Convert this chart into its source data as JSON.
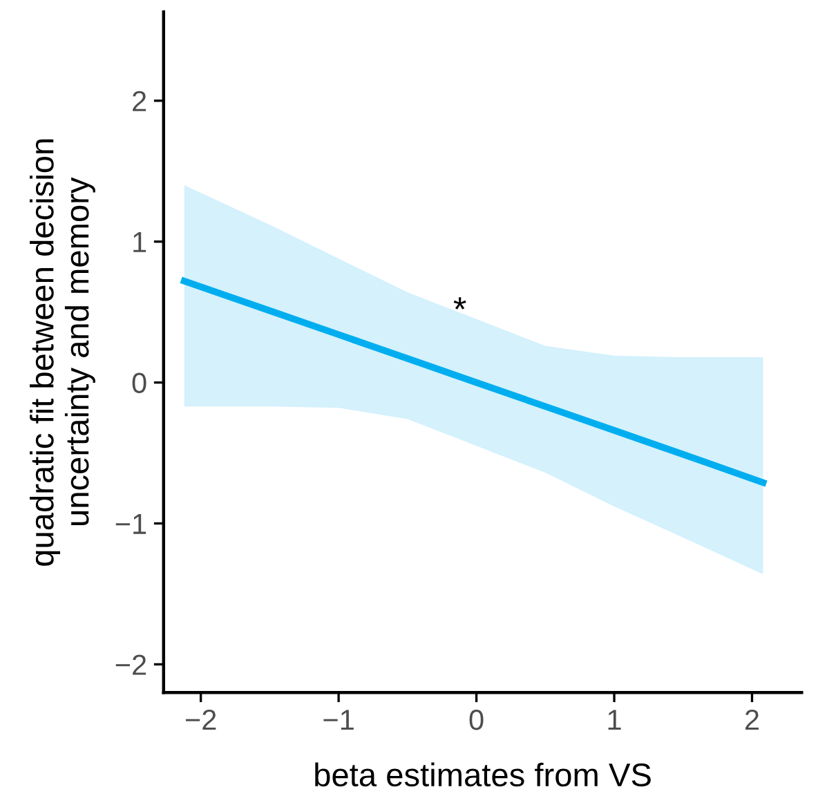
{
  "chart_data": {
    "type": "line",
    "xlabel": "beta estimates from VS",
    "ylabel": "quadratic fit between decision\nuncertainty and memory",
    "xlim": [
      -2.27,
      2.36
    ],
    "ylim": [
      -2.2,
      2.63
    ],
    "xticks": [
      {
        "value": -2,
        "label": "−2"
      },
      {
        "value": -1,
        "label": "−1"
      },
      0,
      1,
      2
    ],
    "yticks": [
      {
        "value": -2,
        "label": "−2"
      },
      {
        "value": -1,
        "label": "−1"
      },
      0,
      1,
      2
    ],
    "grid": false,
    "legend": false,
    "marker": "none",
    "line_style": "solid",
    "series": [
      {
        "color": "#00aeef",
        "x": [
          -2.12,
          -1.5,
          -1,
          -0.5,
          0,
          0.5,
          1,
          1.5,
          2.08
        ],
        "values": [
          0.72,
          0.51,
          0.34,
          0.17,
          0.0,
          -0.17,
          -0.34,
          -0.51,
          -0.71
        ],
        "upper": [
          1.4,
          1.12,
          0.88,
          0.64,
          0.45,
          0.26,
          0.19,
          0.18,
          0.18
        ],
        "lower": [
          -0.17,
          -0.17,
          -0.18,
          -0.26,
          -0.45,
          -0.64,
          -0.88,
          -1.1,
          -1.36
        ]
      }
    ],
    "annotations": [
      {
        "text": "*",
        "x": -0.12,
        "y": 0.5
      }
    ]
  }
}
